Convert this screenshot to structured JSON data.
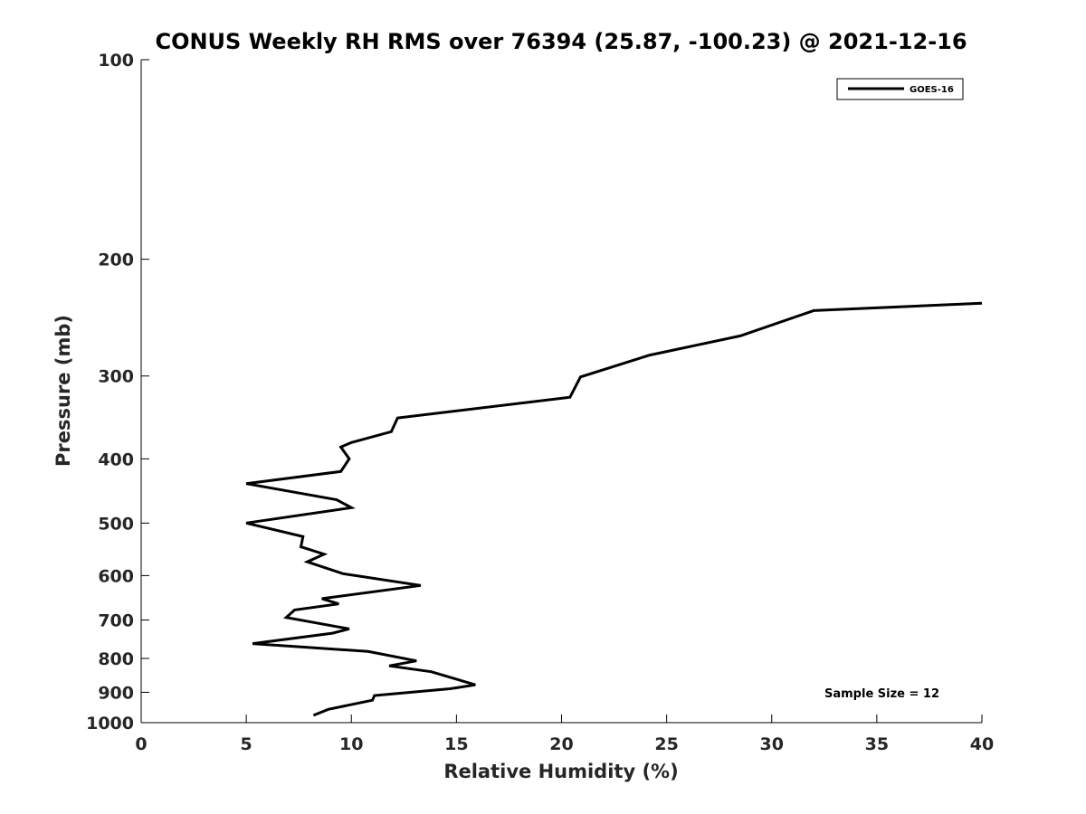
{
  "chart_data": {
    "type": "line",
    "title": "CONUS Weekly RH RMS over 76394 (25.87, -100.23) @ 2021-12-16",
    "xlabel": "Relative Humidity (%)",
    "ylabel": "Pressure (mb)",
    "xlim": [
      0,
      40
    ],
    "ylim": [
      100,
      1000
    ],
    "y_scale": "log",
    "y_reversed": true,
    "x_ticks": [
      0,
      5,
      10,
      15,
      20,
      25,
      30,
      35,
      40
    ],
    "y_ticks": [
      100,
      200,
      300,
      400,
      500,
      600,
      700,
      800,
      900,
      1000
    ],
    "grid": false,
    "legend_position": "top-right",
    "annotation": "Sample Size = 12",
    "series": [
      {
        "name": "GOES-16",
        "color": "#000000",
        "points": [
          [
            8.2,
            975
          ],
          [
            8.9,
            955
          ],
          [
            11.0,
            925
          ],
          [
            11.1,
            910
          ],
          [
            14.7,
            889
          ],
          [
            15.9,
            877
          ],
          [
            13.8,
            838
          ],
          [
            11.8,
            821
          ],
          [
            13.1,
            807
          ],
          [
            10.8,
            781
          ],
          [
            5.3,
            760
          ],
          [
            9.1,
            733
          ],
          [
            9.9,
            722
          ],
          [
            6.9,
            694
          ],
          [
            7.3,
            676
          ],
          [
            9.4,
            662
          ],
          [
            8.6,
            650
          ],
          [
            13.3,
            621
          ],
          [
            9.6,
            596
          ],
          [
            7.9,
            572
          ],
          [
            8.7,
            557
          ],
          [
            7.6,
            543
          ],
          [
            7.7,
            524
          ],
          [
            5.0,
            500
          ],
          [
            10.0,
            474
          ],
          [
            9.3,
            461
          ],
          [
            5.0,
            436
          ],
          [
            9.5,
            418
          ],
          [
            9.9,
            400
          ],
          [
            9.5,
            384
          ],
          [
            10.0,
            378
          ],
          [
            11.9,
            364
          ],
          [
            12.2,
            347
          ],
          [
            20.4,
            323
          ],
          [
            20.9,
            301
          ],
          [
            24.2,
            279
          ],
          [
            28.5,
            261
          ],
          [
            32.0,
            239
          ],
          [
            40.0,
            233
          ]
        ]
      }
    ]
  }
}
